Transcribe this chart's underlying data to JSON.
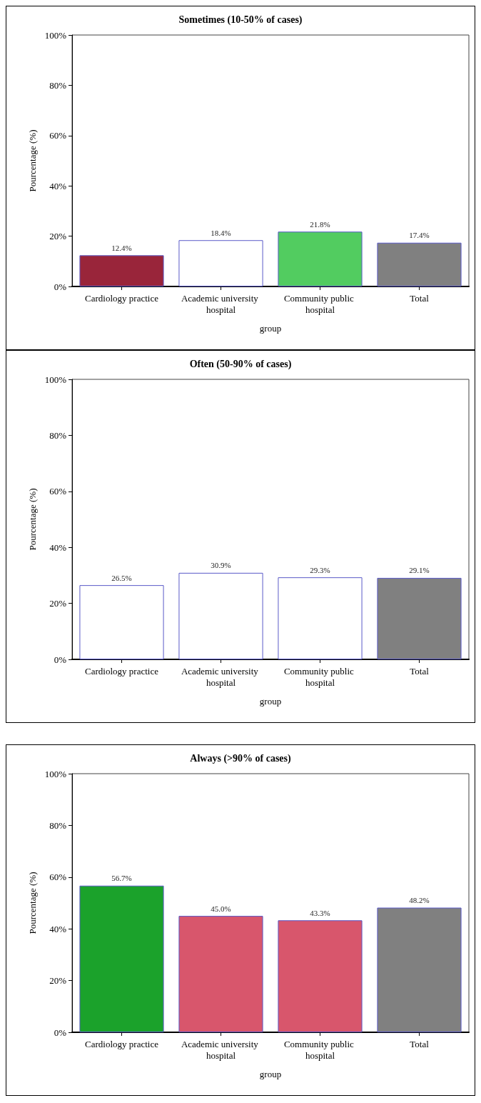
{
  "chart_data": [
    {
      "type": "bar",
      "title": "Sometimes (10-50% of cases)",
      "xlabel": "group",
      "ylabel": "Pourcentage (%)",
      "categories": [
        "Cardiology practice",
        "Academic university hospital",
        "Community public hospital",
        "Total"
      ],
      "values": [
        12.4,
        18.4,
        21.8,
        17.4
      ],
      "colors": [
        "#99253a",
        "#ffffff",
        "#52cc60",
        "#808080"
      ],
      "value_labels": [
        "12.4%",
        "18.4%",
        "21.8%",
        "17.4%"
      ],
      "ylim": [
        0,
        100
      ],
      "yticks": [
        {
          "value": 0,
          "label": "0%"
        },
        {
          "value": 20,
          "label": "20%"
        },
        {
          "value": 40,
          "label": "40%"
        },
        {
          "value": 60,
          "label": "60%"
        },
        {
          "value": 80,
          "label": "80%"
        },
        {
          "value": 100,
          "label": "100%"
        }
      ]
    },
    {
      "type": "bar",
      "title": "Often (50-90% of cases)",
      "xlabel": "group",
      "ylabel": "Pourcentage (%)",
      "categories": [
        "Cardiology practice",
        "Academic university hospital",
        "Community public hospital",
        "Total"
      ],
      "values": [
        26.5,
        30.9,
        29.3,
        29.1
      ],
      "colors": [
        "#ffffff",
        "#ffffff",
        "#ffffff",
        "#808080"
      ],
      "value_labels": [
        "26.5%",
        "30.9%",
        "29.3%",
        "29.1%"
      ],
      "ylim": [
        0,
        100
      ],
      "yticks": [
        {
          "value": 0,
          "label": "0%"
        },
        {
          "value": 20,
          "label": "20%"
        },
        {
          "value": 40,
          "label": "40%"
        },
        {
          "value": 60,
          "label": "60%"
        },
        {
          "value": 80,
          "label": "80%"
        },
        {
          "value": 100,
          "label": "100%"
        }
      ]
    },
    {
      "type": "bar",
      "title": "Always (>90% of cases)",
      "xlabel": "group",
      "ylabel": "Pourcentage (%)",
      "categories": [
        "Cardiology practice",
        "Academic university hospital",
        "Community public hospital",
        "Total"
      ],
      "values": [
        56.7,
        45.0,
        43.3,
        48.2
      ],
      "colors": [
        "#1ba22b",
        "#d8566c",
        "#d8566c",
        "#808080"
      ],
      "value_labels": [
        "56.7%",
        "45.0%",
        "43.3%",
        "48.2%"
      ],
      "ylim": [
        0,
        100
      ],
      "yticks": [
        {
          "value": 0,
          "label": "0%"
        },
        {
          "value": 20,
          "label": "20%"
        },
        {
          "value": 40,
          "label": "40%"
        },
        {
          "value": 60,
          "label": "60%"
        },
        {
          "value": 80,
          "label": "80%"
        },
        {
          "value": 100,
          "label": "100%"
        }
      ]
    }
  ]
}
